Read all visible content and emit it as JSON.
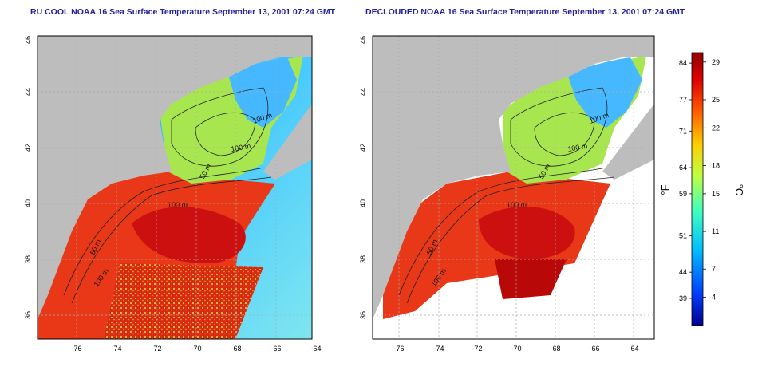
{
  "panels": [
    {
      "title": "RU COOL NOAA 16 Sea Surface Temperature September 13, 2001 07:24 GMT",
      "x_ticks": [
        "-76",
        "-74",
        "-72",
        "-70",
        "-68",
        "-66",
        "-64"
      ],
      "y_ticks": [
        "36",
        "38",
        "40",
        "42",
        "44",
        "46"
      ],
      "contour_labels": [
        "100 m",
        "100 m",
        "50 m",
        "100 m",
        "50 m",
        "100 m"
      ]
    },
    {
      "title": "DECLOUDED NOAA 16 Sea Surface Temperature September 13, 2001 07:24 GMT",
      "x_ticks": [
        "-76",
        "-74",
        "-72",
        "-70",
        "-68",
        "-66",
        "-64"
      ],
      "y_ticks": [
        "36",
        "38",
        "40",
        "42",
        "44",
        "46"
      ],
      "contour_labels": [
        "100 m",
        "100 m",
        "50 m",
        "100 m",
        "50 m",
        "100 m"
      ]
    }
  ],
  "colorbar": {
    "fahrenheit_label": "°F",
    "celsius_label": "°C",
    "fahrenheit_ticks": [
      "84",
      "77",
      "71",
      "64",
      "59",
      "51",
      "44",
      "39"
    ],
    "celsius_ticks": [
      "29",
      "25",
      "22",
      "18",
      "15",
      "11",
      "7",
      "4"
    ],
    "fahrenheit_values": [
      84,
      77,
      71,
      64,
      59,
      51,
      44,
      39
    ],
    "celsius_values": [
      29,
      25,
      22,
      18,
      15,
      11,
      7,
      4
    ],
    "min_c": 1,
    "max_c": 30,
    "colors": [
      "#00008f",
      "#0040ff",
      "#00c0ff",
      "#40ffbf",
      "#bfff40",
      "#ffd000",
      "#ff6000",
      "#e00000",
      "#8f0000"
    ]
  },
  "colors": {
    "land": "#bdbdbd",
    "cloud_free": "#ffffff",
    "title": "#1f1f9f"
  }
}
